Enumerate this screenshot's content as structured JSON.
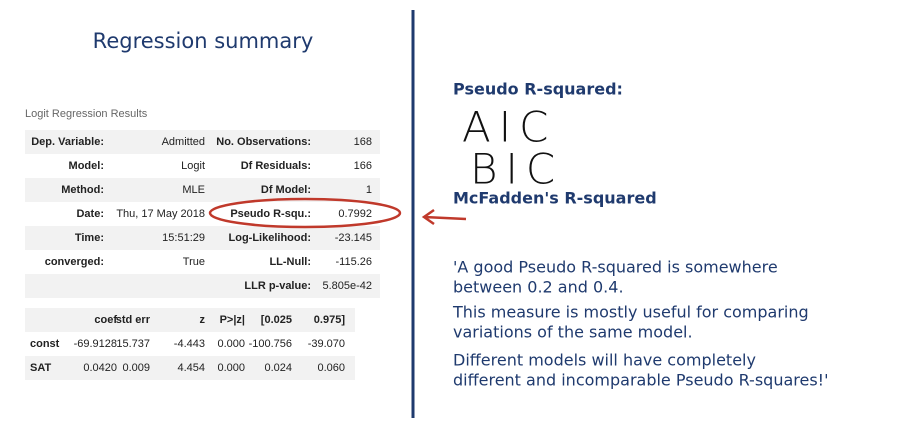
{
  "header": {
    "title": "Regression summary"
  },
  "table": {
    "caption": "Logit Regression Results",
    "left": [
      [
        "Dep. Variable:",
        "Admitted"
      ],
      [
        "Model:",
        "Logit"
      ],
      [
        "Method:",
        "MLE"
      ],
      [
        "Date:",
        "Thu, 17 May 2018"
      ],
      [
        "Time:",
        "15:51:29"
      ],
      [
        "converged:",
        "True"
      ]
    ],
    "right": [
      [
        "No. Observations:",
        "168"
      ],
      [
        "Df Residuals:",
        "166"
      ],
      [
        "Df Model:",
        "1"
      ],
      [
        "Pseudo R-squ.:",
        "0.7992"
      ],
      [
        "Log-Likelihood:",
        "-23.145"
      ],
      [
        "LL-Null:",
        "-115.26"
      ],
      [
        "LLR p-value:",
        "5.805e-42"
      ]
    ],
    "coef_header": [
      "coef",
      "std err",
      "z",
      "P>|z|",
      "[0.025",
      "0.975]"
    ],
    "coef_rows": [
      [
        "const",
        "-69.9128",
        "15.737",
        "-4.443",
        "0.000",
        "-100.756",
        "-39.070"
      ],
      [
        "SAT",
        "0.0420",
        "0.009",
        "4.454",
        "0.000",
        "0.024",
        "0.060"
      ]
    ]
  },
  "notes": {
    "heading": "Pseudo R-squared:",
    "handwritten": [
      "AIC",
      "BIC"
    ],
    "mcfadden": "McFadden's R-squared",
    "quote": [
      "'A good Pseudo R-squared is somewhere",
      "between 0.2 and 0.4.",
      "This measure is mostly useful for comparing",
      "variations of the same model.",
      "Different models will have completely",
      "different and incomparable Pseudo R-squares!'"
    ]
  }
}
